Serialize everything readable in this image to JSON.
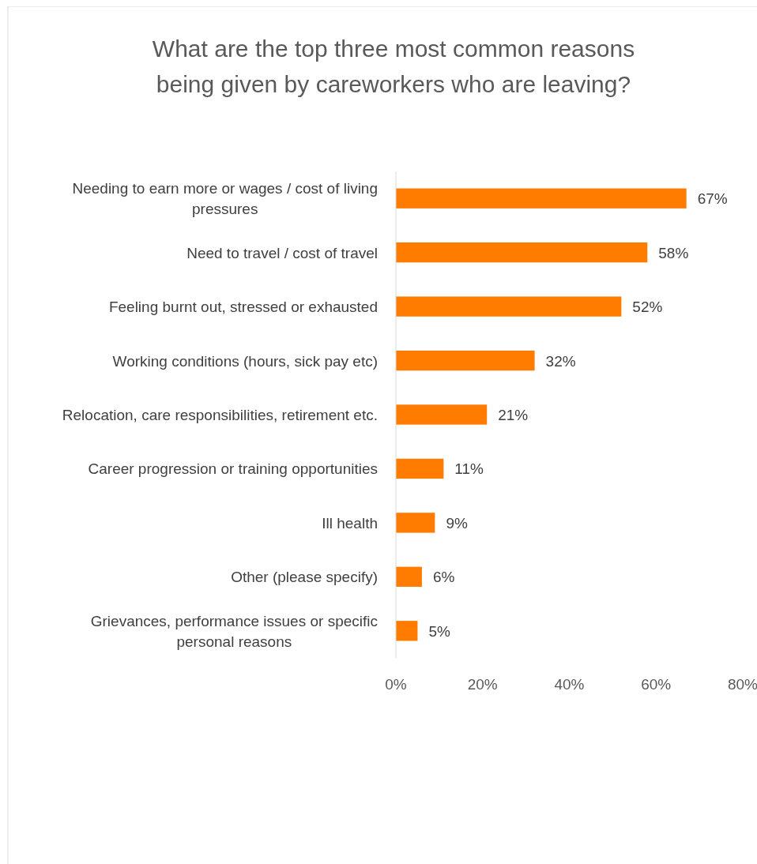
{
  "chart_data": {
    "type": "bar",
    "orientation": "horizontal",
    "title": "What are the top three most common reasons being given by careworkers who are leaving?",
    "categories": [
      "Needing to earn more or wages / cost of living pressures",
      "Need to travel / cost of travel",
      "Feeling burnt out, stressed or exhausted",
      "Working conditions (hours, sick pay etc)",
      "Relocation, care responsibilities, retirement etc.",
      "Career progression or training opportunities",
      "Ill health",
      "Other (please specify)",
      "Grievances, performance issues or specific personal reasons"
    ],
    "values": [
      67,
      58,
      52,
      32,
      21,
      11,
      9,
      6,
      5
    ],
    "value_labels": [
      "67%",
      "58%",
      "52%",
      "32%",
      "21%",
      "11%",
      "9%",
      "6%",
      "5%"
    ],
    "color": "#ff7c00",
    "xlim": [
      0,
      80
    ],
    "xticks": [
      {
        "value": 0,
        "label": "0%"
      },
      {
        "value": 20,
        "label": "20%"
      },
      {
        "value": 40,
        "label": "40%"
      },
      {
        "value": 60,
        "label": "60%"
      },
      {
        "value": 80,
        "label": "80%"
      }
    ],
    "grid": false
  }
}
